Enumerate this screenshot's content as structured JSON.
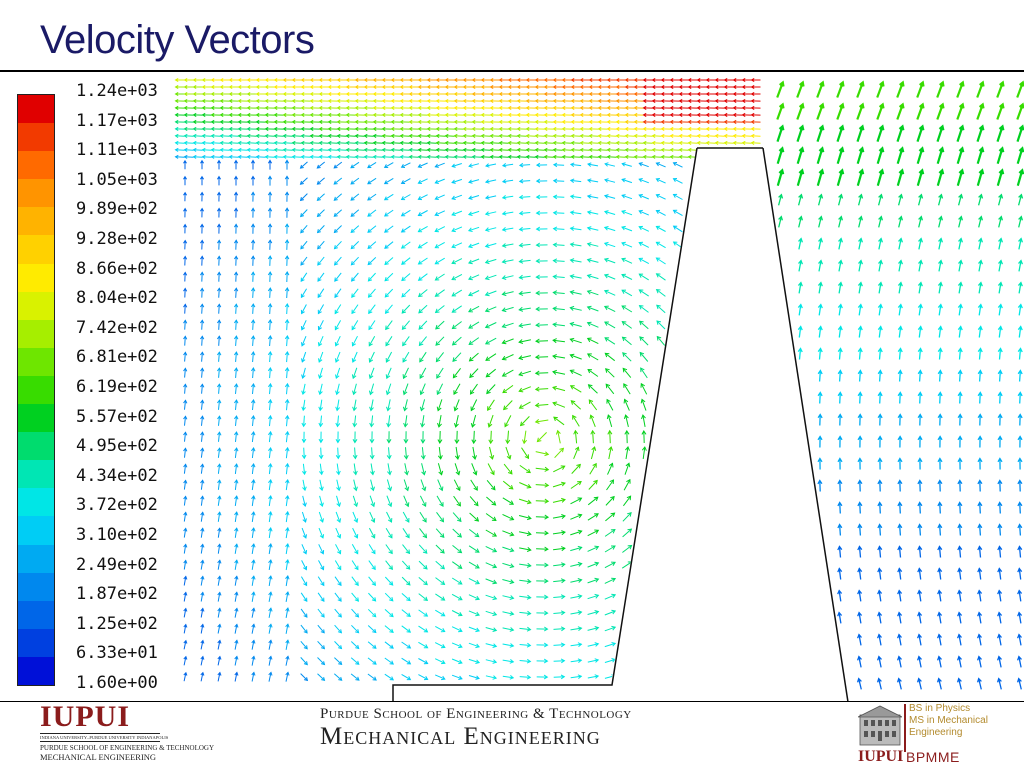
{
  "slide": {
    "title": "Velocity Vectors"
  },
  "colorbar": {
    "colors": [
      "#e00000",
      "#f23a00",
      "#ff6a00",
      "#ff9400",
      "#ffb300",
      "#ffd100",
      "#ffeb00",
      "#d9f200",
      "#a6ee00",
      "#6ee600",
      "#38dc00",
      "#00d020",
      "#00dc6e",
      "#00e6b4",
      "#00e6e6",
      "#00cdf5",
      "#00aaf2",
      "#0088ee",
      "#0066e8",
      "#0040e0",
      "#0010d8"
    ],
    "labels": [
      "1.24e+03",
      "1.17e+03",
      "1.11e+03",
      "1.05e+03",
      "9.89e+02",
      "9.28e+02",
      "8.66e+02",
      "8.04e+02",
      "7.42e+02",
      "6.81e+02",
      "6.19e+02",
      "5.57e+02",
      "4.95e+02",
      "4.34e+02",
      "3.72e+02",
      "3.10e+02",
      "2.49e+02",
      "1.87e+02",
      "1.25e+02",
      "6.33e+01",
      "1.60e+00"
    ]
  },
  "footer": {
    "iupui_word": "IUPUI",
    "iupui_sub1": "INDIANA UNIVERSITY–PURDUE UNIVERSITY INDIANAPOLIS",
    "iupui_sub2": "PURDUE SCHOOL OF ENGINEERING & TECHNOLOGY",
    "iupui_sub3": "MECHANICAL ENGINEERING",
    "school": "Purdue School of Engineering & Technology",
    "department": "Mechanical Engineering",
    "bpmme_line1": "BS in Physics",
    "bpmme_line2": "MS in Mechanical",
    "bpmme_line3": "Engineering",
    "bpmme_iupui": "IUPUI",
    "bpmme_word": "BPMME"
  }
}
